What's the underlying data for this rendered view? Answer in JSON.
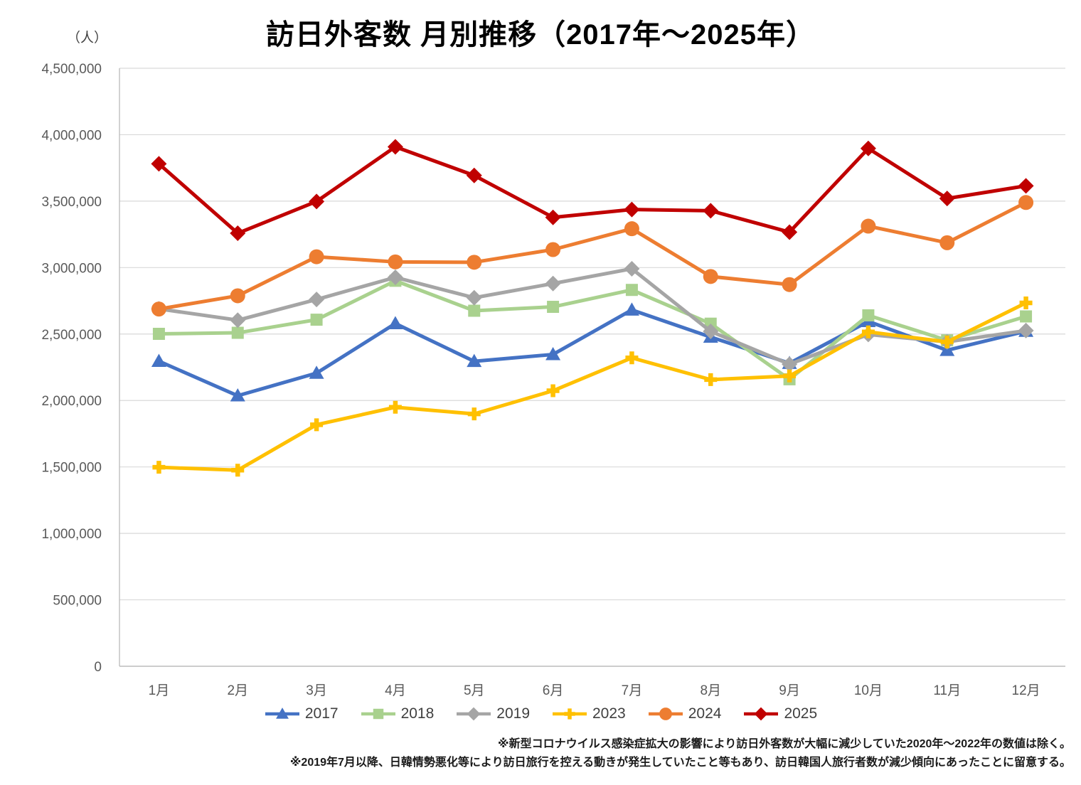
{
  "chart_data": {
    "type": "line",
    "title": "訪日外客数 月別推移（2017年～2025年）",
    "unit_label": "（人）",
    "categories": [
      "1月",
      "2月",
      "3月",
      "4月",
      "5月",
      "6月",
      "7月",
      "8月",
      "9月",
      "10月",
      "11月",
      "12月"
    ],
    "ylim": [
      0,
      4500000
    ],
    "ytick_step": 500000,
    "grid": "horizontal",
    "legend_position": "bottom",
    "series": [
      {
        "name": "2017",
        "color": "#4472C4",
        "marker": "triangle",
        "values": [
          2295700,
          2035800,
          2205700,
          2579000,
          2294700,
          2346500,
          2681500,
          2477500,
          2280300,
          2595200,
          2377900,
          2521300
        ]
      },
      {
        "name": "2018",
        "color": "#A9D18E",
        "marker": "square",
        "values": [
          2501500,
          2509300,
          2607900,
          2900700,
          2675400,
          2704600,
          2832000,
          2578000,
          2159600,
          2640600,
          2452900,
          2632600
        ]
      },
      {
        "name": "2019",
        "color": "#A5A5A5",
        "marker": "diamond",
        "values": [
          2689400,
          2604300,
          2760100,
          2926700,
          2773100,
          2880000,
          2991200,
          2520100,
          2272900,
          2496600,
          2441300,
          2526000
        ]
      },
      {
        "name": "2023",
        "color": "#FFC000",
        "marker": "plus",
        "values": [
          1497300,
          1475300,
          1817500,
          1949100,
          1898900,
          2073300,
          2320600,
          2156900,
          2184300,
          2516500,
          2440800,
          2734000
        ]
      },
      {
        "name": "2024",
        "color": "#ED7D31",
        "marker": "circle",
        "values": [
          2688100,
          2788000,
          3081600,
          3042900,
          3040100,
          3135600,
          3292500,
          2933000,
          2872200,
          3312000,
          3187000,
          3489800
        ]
      },
      {
        "name": "2025",
        "color": "#C00000",
        "marker": "diamond",
        "values": [
          3781200,
          3258400,
          3497600,
          3908900,
          3693300,
          3377800,
          3437000,
          3428000,
          3266800,
          3896500,
          3520000,
          3615000
        ]
      }
    ],
    "footnotes": [
      "※新型コロナウイルス感染症拡大の影響により訪日外客数が大幅に減少していた2020年～2022年の数値は除く。",
      "※2019年7月以降、日韓情勢悪化等により訪日旅行を控える動きが発生していたこと等もあり、訪日韓国人旅行者数が減少傾向にあったことに留意する。"
    ]
  }
}
